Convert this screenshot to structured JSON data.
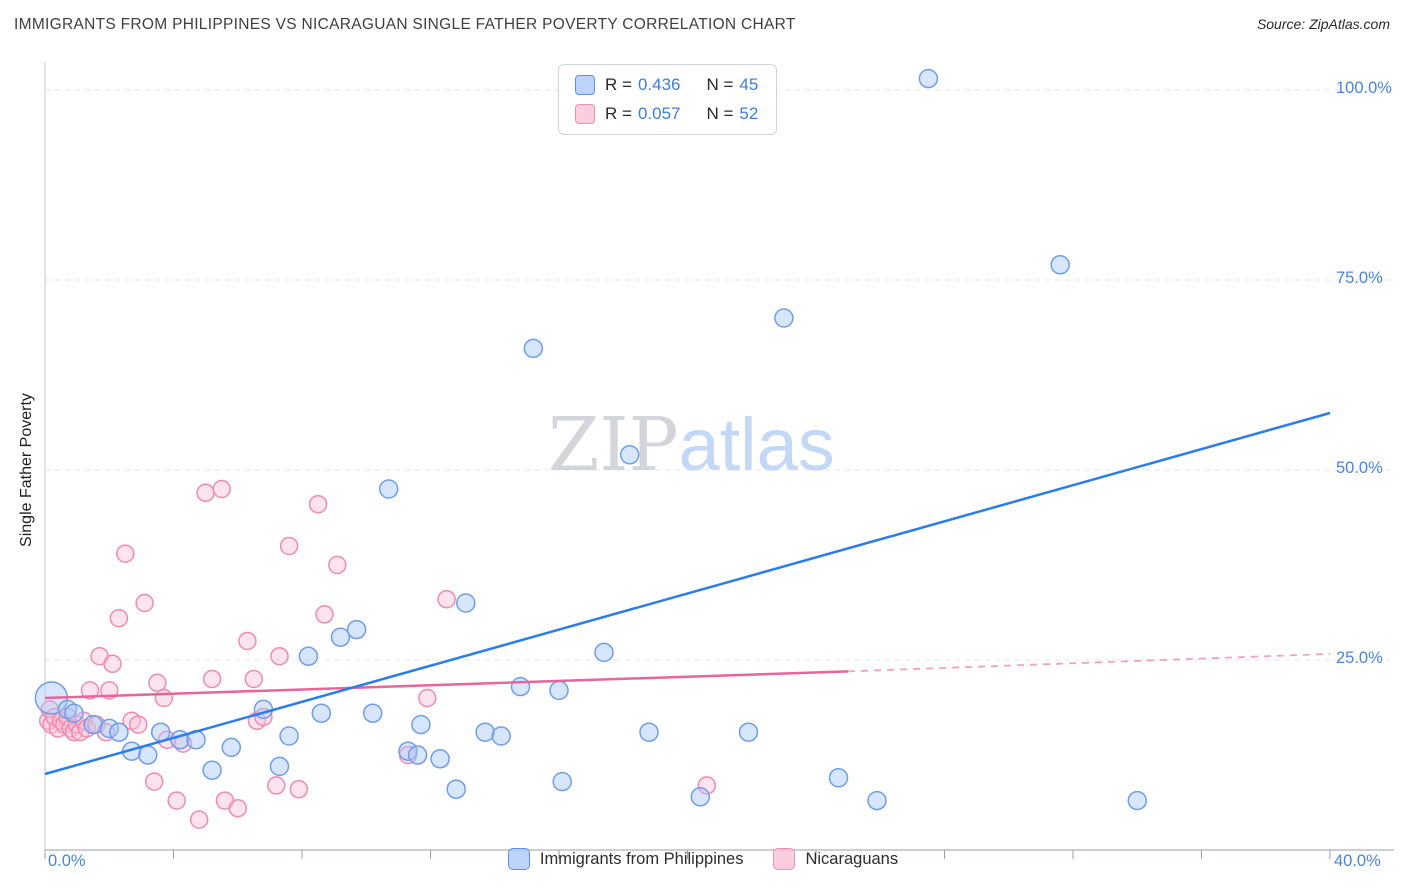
{
  "header": {
    "title": "IMMIGRANTS FROM PHILIPPINES VS NICARAGUAN SINGLE FATHER POVERTY CORRELATION CHART",
    "source": "Source: ZipAtlas.com"
  },
  "watermark": {
    "part1": "ZIP",
    "part2": "atlas"
  },
  "axes": {
    "y_label": "Single Father Poverty",
    "y_ticks": [
      "100.0%",
      "75.0%",
      "50.0%",
      "25.0%"
    ],
    "x_min_label": "0.0%",
    "x_max_label": "40.0%"
  },
  "legend_box": {
    "series": [
      {
        "r_label": "R =",
        "r_value": "0.436",
        "n_label": "N =",
        "n_value": "45"
      },
      {
        "r_label": "R =",
        "r_value": "0.057",
        "n_label": "N =",
        "n_value": "52"
      }
    ]
  },
  "bottom_legend": [
    {
      "label": "Immigrants from Philippines"
    },
    {
      "label": "Nicaraguans"
    }
  ],
  "chart_data": {
    "type": "scatter",
    "title": "Immigrants from Philippines vs Nicaraguan Single Father Poverty",
    "xlabel": "Immigrants from Philippines (%)",
    "ylabel": "Single Father Poverty",
    "x_range": [
      0,
      40
    ],
    "y_range": [
      0,
      104
    ],
    "gridlines_y": [
      25,
      50,
      75,
      100
    ],
    "x_tick_step": 4,
    "grid": "dashed horizontal",
    "legend_position": "top-center",
    "series": [
      {
        "name": "Immigrants from Philippines",
        "id": "philippines",
        "R": 0.436,
        "N": 45,
        "fill": "#a8c7fa",
        "stroke": "#6d9eeb",
        "trend_color": "#2b7de9",
        "radius": 9,
        "trend": {
          "x1": 0,
          "y1": 10,
          "x2": 40,
          "y2": 57.5
        },
        "points": [
          [
            0.2,
            20,
            16
          ],
          [
            0.7,
            18.5
          ],
          [
            0.9,
            18
          ],
          [
            1.5,
            16.5
          ],
          [
            2.0,
            16
          ],
          [
            2.3,
            15.5
          ],
          [
            2.7,
            13
          ],
          [
            3.2,
            12.5
          ],
          [
            3.6,
            15.5
          ],
          [
            4.2,
            14.5
          ],
          [
            4.7,
            14.5
          ],
          [
            5.2,
            10.5
          ],
          [
            5.8,
            13.5
          ],
          [
            6.8,
            18.5
          ],
          [
            7.3,
            11
          ],
          [
            7.6,
            15
          ],
          [
            8.2,
            25.5
          ],
          [
            8.6,
            18
          ],
          [
            9.2,
            28
          ],
          [
            9.7,
            29
          ],
          [
            10.2,
            18
          ],
          [
            10.7,
            47.5
          ],
          [
            11.3,
            13
          ],
          [
            11.6,
            12.5
          ],
          [
            11.7,
            16.5
          ],
          [
            12.3,
            12
          ],
          [
            12.8,
            8
          ],
          [
            13.1,
            32.5
          ],
          [
            13.7,
            15.5
          ],
          [
            14.2,
            15
          ],
          [
            14.8,
            21.5
          ],
          [
            15.2,
            66
          ],
          [
            16.0,
            21
          ],
          [
            16.1,
            9
          ],
          [
            17.4,
            26
          ],
          [
            18.2,
            52
          ],
          [
            18.8,
            15.5
          ],
          [
            20.4,
            7
          ],
          [
            21.9,
            15.5
          ],
          [
            23.0,
            70
          ],
          [
            24.7,
            9.5
          ],
          [
            25.9,
            6.5
          ],
          [
            27.5,
            101.5
          ],
          [
            31.6,
            77
          ],
          [
            34.0,
            6.5
          ]
        ]
      },
      {
        "name": "Nicaraguans",
        "id": "nicaraguans",
        "R": 0.057,
        "N": 52,
        "fill": "#f9c2d6",
        "stroke": "#f08bb0",
        "trend_color": "#e8649a",
        "radius": 8.5,
        "trend": {
          "x1": 0,
          "y1": 20,
          "x2": 25,
          "y2": 23.5,
          "dash_to_x": 40,
          "dash_to_y": 25.8
        },
        "points": [
          [
            0.1,
            17
          ],
          [
            0.15,
            18.5
          ],
          [
            0.2,
            16.5
          ],
          [
            0.3,
            17.5
          ],
          [
            0.4,
            16
          ],
          [
            0.5,
            17
          ],
          [
            0.6,
            16.5
          ],
          [
            0.7,
            17.5
          ],
          [
            0.8,
            16
          ],
          [
            0.9,
            15.5
          ],
          [
            1.0,
            16.5
          ],
          [
            1.1,
            15.5
          ],
          [
            1.2,
            17
          ],
          [
            1.3,
            16
          ],
          [
            1.4,
            21
          ],
          [
            1.6,
            16.5
          ],
          [
            1.7,
            25.5
          ],
          [
            1.9,
            15.5
          ],
          [
            2.0,
            21
          ],
          [
            2.1,
            24.5
          ],
          [
            2.3,
            30.5
          ],
          [
            2.5,
            39
          ],
          [
            2.7,
            17
          ],
          [
            2.9,
            16.5
          ],
          [
            3.1,
            32.5
          ],
          [
            3.4,
            9
          ],
          [
            3.5,
            22
          ],
          [
            3.7,
            20
          ],
          [
            3.8,
            14.5
          ],
          [
            4.1,
            6.5
          ],
          [
            4.3,
            14
          ],
          [
            4.8,
            4
          ],
          [
            5.0,
            47
          ],
          [
            5.2,
            22.5
          ],
          [
            5.5,
            47.5
          ],
          [
            5.6,
            6.5
          ],
          [
            6.0,
            5.5
          ],
          [
            6.3,
            27.5
          ],
          [
            6.5,
            22.5
          ],
          [
            6.6,
            17
          ],
          [
            6.8,
            17.5
          ],
          [
            7.2,
            8.5
          ],
          [
            7.3,
            25.5
          ],
          [
            7.6,
            40
          ],
          [
            7.9,
            8
          ],
          [
            8.5,
            45.5
          ],
          [
            8.7,
            31
          ],
          [
            9.1,
            37.5
          ],
          [
            11.3,
            12.5
          ],
          [
            11.9,
            20
          ],
          [
            12.5,
            33
          ],
          [
            20.6,
            8.5
          ]
        ]
      }
    ]
  }
}
